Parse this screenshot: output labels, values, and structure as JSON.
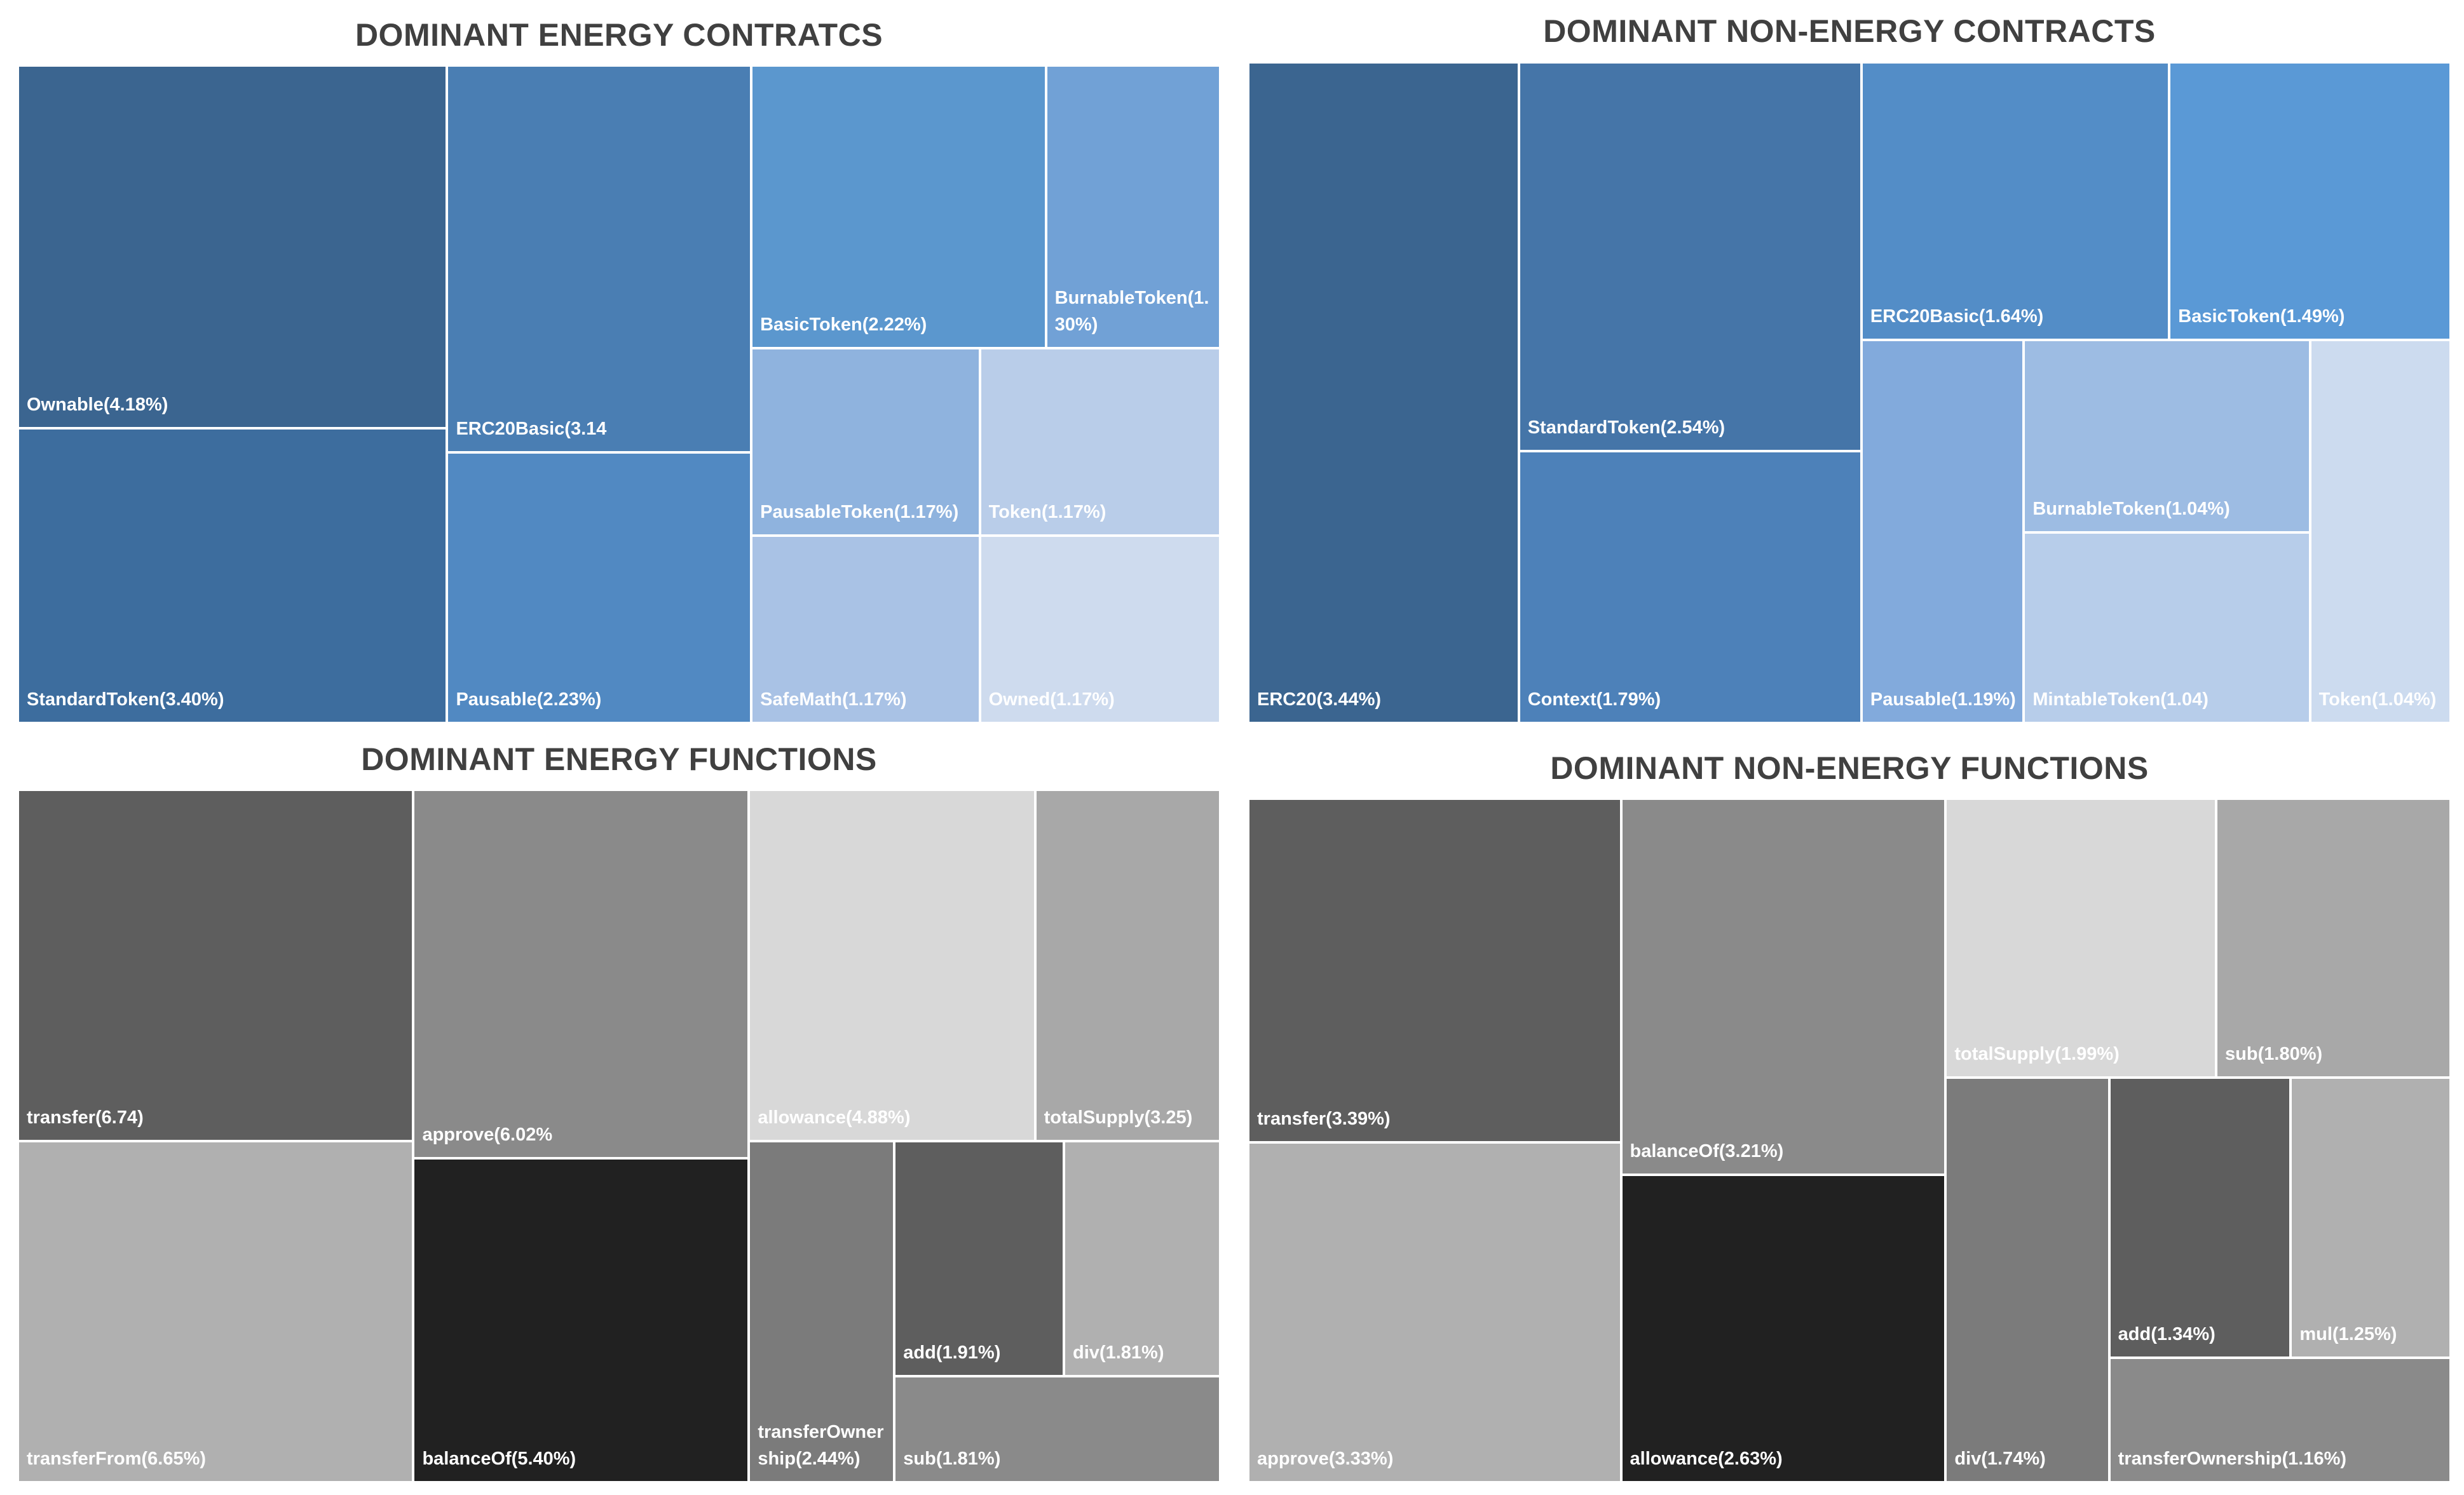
{
  "chart_data": [
    {
      "type": "treemap",
      "title": "DOMINANT ENERGY CONTRATCS",
      "items": [
        {
          "label": "Ownable(4.18%)",
          "value": 4.18,
          "color": "#3B6590"
        },
        {
          "label": "StandardToken(3.40%)",
          "value": 3.4,
          "color": "#3D6D9E"
        },
        {
          "label": "ERC20Basic(3.14",
          "value": 3.14,
          "color": "#4A7EB3"
        },
        {
          "label": "Pausable(2.23%)",
          "value": 2.23,
          "color": "#5189C2"
        },
        {
          "label": "BasicToken(2.22%)",
          "value": 2.22,
          "color": "#5B97CE"
        },
        {
          "label": "BurnableToken(1.30%)",
          "value": 1.3,
          "color": "#71A1D6"
        },
        {
          "label": "PausableToken(1.17%)",
          "value": 1.17,
          "color": "#8FB3DE"
        },
        {
          "label": "Token(1.17%)",
          "value": 1.17,
          "color": "#B9CDE9"
        },
        {
          "label": "SafeMath(1.17%)",
          "value": 1.17,
          "color": "#A9C2E5"
        },
        {
          "label": "Owned(1.17%)",
          "value": 1.17,
          "color": "#CEDBEE"
        }
      ]
    },
    {
      "type": "treemap",
      "title": "DOMINANT NON-ENERGY CONTRACTS",
      "items": [
        {
          "label": "ERC20(3.44%)",
          "value": 3.44,
          "color": "#3B6590"
        },
        {
          "label": "StandardToken(2.54%)",
          "value": 2.54,
          "color": "#4575A8"
        },
        {
          "label": "Context(1.79%)",
          "value": 1.79,
          "color": "#4D81B9"
        },
        {
          "label": "ERC20Basic(1.64%)",
          "value": 1.64,
          "color": "#538DC7"
        },
        {
          "label": "BasicToken(1.49%)",
          "value": 1.49,
          "color": "#5A99D6"
        },
        {
          "label": "Pausable(1.19%)",
          "value": 1.19,
          "color": "#82AADC"
        },
        {
          "label": "BurnableToken(1.04%)",
          "value": 1.04,
          "color": "#9DBCE3"
        },
        {
          "label": "MintableToken(1.04)",
          "value": 1.04,
          "color": "#B7CDEA"
        },
        {
          "label": "Token(1.04%)",
          "value": 1.04,
          "color": "#CCDBEF"
        }
      ]
    },
    {
      "type": "treemap",
      "title": "DOMINANT ENERGY FUNCTIONS",
      "items": [
        {
          "label": "transfer(6.74)",
          "value": 6.74,
          "color": "#5E5E5E"
        },
        {
          "label": "transferFrom(6.65%)",
          "value": 6.65,
          "color": "#B0B0B0"
        },
        {
          "label": "approve(6.02%",
          "value": 6.02,
          "color": "#8A8A8A"
        },
        {
          "label": "balanceOf(5.40%)",
          "value": 5.4,
          "color": "#212121"
        },
        {
          "label": "allowance(4.88%)",
          "value": 4.88,
          "color": "#D8D8D8"
        },
        {
          "label": "totalSupply(3.25)",
          "value": 3.25,
          "color": "#A8A8A8"
        },
        {
          "label": "transferOwnership(2.44%)",
          "value": 2.44,
          "color": "#7B7B7B"
        },
        {
          "label": "add(1.91%)",
          "value": 1.91,
          "color": "#5E5E5E"
        },
        {
          "label": "div(1.81%)",
          "value": 1.81,
          "color": "#B0B0B0"
        },
        {
          "label": "sub(1.81%)",
          "value": 1.81,
          "color": "#8A8A8A"
        }
      ]
    },
    {
      "type": "treemap",
      "title": "DOMINANT NON-ENERGY FUNCTIONS",
      "items": [
        {
          "label": "transfer(3.39%)",
          "value": 3.39,
          "color": "#5E5E5E"
        },
        {
          "label": "approve(3.33%)",
          "value": 3.33,
          "color": "#B0B0B0"
        },
        {
          "label": "balanceOf(3.21%)",
          "value": 3.21,
          "color": "#8A8A8A"
        },
        {
          "label": "allowance(2.63%)",
          "value": 2.63,
          "color": "#212121"
        },
        {
          "label": "totalSupply(1.99%)",
          "value": 1.99,
          "color": "#D8D8D8"
        },
        {
          "label": "sub(1.80%)",
          "value": 1.8,
          "color": "#A8A8A8"
        },
        {
          "label": "div(1.74%)",
          "value": 1.74,
          "color": "#7B7B7B"
        },
        {
          "label": "add(1.34%)",
          "value": 1.34,
          "color": "#5E5E5E"
        },
        {
          "label": "mul(1.25%)",
          "value": 1.25,
          "color": "#B0B0B0"
        },
        {
          "label": "transferOwnership(1.16%)",
          "value": 1.16,
          "color": "#8A8A8A"
        }
      ]
    }
  ]
}
